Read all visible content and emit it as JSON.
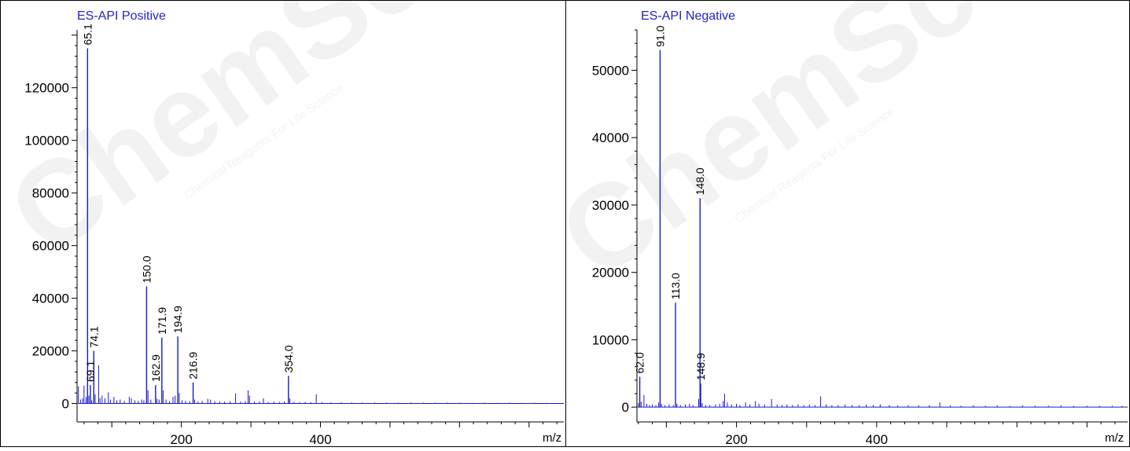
{
  "watermark": {
    "brand": "ChemScene",
    "tagline": "Chemical Reagents For Life Science"
  },
  "chart_data": [
    {
      "type": "bar",
      "title": "ES-API Positive",
      "xlabel": "m/z",
      "ylabel": "",
      "xlim": [
        50,
        750
      ],
      "ylim": [
        -7000,
        142000
      ],
      "xticks": [
        200,
        400
      ],
      "yticks": [
        0,
        20000,
        40000,
        60000,
        80000,
        100000,
        120000
      ],
      "color": "#1a1acc",
      "title_color": "#2222cc",
      "peaks": [
        {
          "x": 65.1,
          "y": 135000,
          "label": "65.1"
        },
        {
          "x": 69.1,
          "y": 7000,
          "label": "69.1"
        },
        {
          "x": 74.1,
          "y": 20000,
          "label": "74.1"
        },
        {
          "x": 150.0,
          "y": 44500,
          "label": "150.0"
        },
        {
          "x": 162.9,
          "y": 7000,
          "label": "162.9"
        },
        {
          "x": 171.9,
          "y": 25000,
          "label": "171.9"
        },
        {
          "x": 194.9,
          "y": 25500,
          "label": "194.9"
        },
        {
          "x": 216.9,
          "y": 8000,
          "label": "216.9"
        },
        {
          "x": 354.0,
          "y": 10500,
          "label": "354.0"
        }
      ],
      "minor_peaks": [
        {
          "x": 52,
          "y": 6500
        },
        {
          "x": 55,
          "y": 1500
        },
        {
          "x": 58,
          "y": 2000
        },
        {
          "x": 60,
          "y": 6800
        },
        {
          "x": 63,
          "y": 2500
        },
        {
          "x": 67,
          "y": 3000
        },
        {
          "x": 71,
          "y": 1200
        },
        {
          "x": 76,
          "y": 3500
        },
        {
          "x": 81,
          "y": 14500
        },
        {
          "x": 83,
          "y": 2000
        },
        {
          "x": 86,
          "y": 3000
        },
        {
          "x": 90,
          "y": 2000
        },
        {
          "x": 95,
          "y": 4200
        },
        {
          "x": 98,
          "y": 1500
        },
        {
          "x": 103,
          "y": 2500
        },
        {
          "x": 107,
          "y": 1200
        },
        {
          "x": 112,
          "y": 1500
        },
        {
          "x": 118,
          "y": 1000
        },
        {
          "x": 125,
          "y": 2500
        },
        {
          "x": 128,
          "y": 2000
        },
        {
          "x": 133,
          "y": 1200
        },
        {
          "x": 138,
          "y": 1000
        },
        {
          "x": 143,
          "y": 1500
        },
        {
          "x": 146,
          "y": 1200
        },
        {
          "x": 152,
          "y": 5000
        },
        {
          "x": 156,
          "y": 1500
        },
        {
          "x": 165,
          "y": 1800
        },
        {
          "x": 168,
          "y": 1500
        },
        {
          "x": 174,
          "y": 5000
        },
        {
          "x": 178,
          "y": 1500
        },
        {
          "x": 183,
          "y": 1000
        },
        {
          "x": 188,
          "y": 2500
        },
        {
          "x": 191,
          "y": 3000
        },
        {
          "x": 197,
          "y": 4000
        },
        {
          "x": 201,
          "y": 1200
        },
        {
          "x": 206,
          "y": 1000
        },
        {
          "x": 212,
          "y": 900
        },
        {
          "x": 219,
          "y": 1500
        },
        {
          "x": 224,
          "y": 800
        },
        {
          "x": 230,
          "y": 1000
        },
        {
          "x": 238,
          "y": 1800
        },
        {
          "x": 242,
          "y": 1500
        },
        {
          "x": 248,
          "y": 900
        },
        {
          "x": 255,
          "y": 800
        },
        {
          "x": 262,
          "y": 700
        },
        {
          "x": 270,
          "y": 900
        },
        {
          "x": 278,
          "y": 3800
        },
        {
          "x": 285,
          "y": 700
        },
        {
          "x": 292,
          "y": 900
        },
        {
          "x": 296,
          "y": 5000
        },
        {
          "x": 298,
          "y": 3000
        },
        {
          "x": 305,
          "y": 700
        },
        {
          "x": 312,
          "y": 800
        },
        {
          "x": 318,
          "y": 2000
        },
        {
          "x": 325,
          "y": 600
        },
        {
          "x": 333,
          "y": 700
        },
        {
          "x": 341,
          "y": 600
        },
        {
          "x": 348,
          "y": 800
        },
        {
          "x": 356,
          "y": 2000
        },
        {
          "x": 362,
          "y": 600
        },
        {
          "x": 370,
          "y": 500
        },
        {
          "x": 378,
          "y": 600
        },
        {
          "x": 386,
          "y": 500
        },
        {
          "x": 394,
          "y": 3500
        },
        {
          "x": 402,
          "y": 500
        },
        {
          "x": 415,
          "y": 400
        },
        {
          "x": 430,
          "y": 500
        },
        {
          "x": 445,
          "y": 400
        },
        {
          "x": 460,
          "y": 350
        },
        {
          "x": 478,
          "y": 400
        },
        {
          "x": 495,
          "y": 350
        },
        {
          "x": 512,
          "y": 300
        },
        {
          "x": 530,
          "y": 350
        },
        {
          "x": 548,
          "y": 300
        },
        {
          "x": 565,
          "y": 300
        },
        {
          "x": 582,
          "y": 350
        },
        {
          "x": 600,
          "y": 300
        },
        {
          "x": 618,
          "y": 250
        },
        {
          "x": 636,
          "y": 300
        },
        {
          "x": 655,
          "y": 250
        },
        {
          "x": 672,
          "y": 300
        },
        {
          "x": 690,
          "y": 250
        },
        {
          "x": 708,
          "y": 300
        },
        {
          "x": 725,
          "y": 250
        }
      ]
    },
    {
      "type": "bar",
      "title": "ES-API Negative",
      "xlabel": "m/z",
      "ylabel": "",
      "xlim": [
        58,
        758
      ],
      "ylim": [
        -2200,
        56000
      ],
      "xticks": [
        200,
        400
      ],
      "yticks": [
        0,
        10000,
        20000,
        30000,
        40000,
        50000
      ],
      "color": "#1a1acc",
      "title_color": "#2222cc",
      "peaks": [
        {
          "x": 62.0,
          "y": 4500,
          "label": "62.0"
        },
        {
          "x": 91.0,
          "y": 53000,
          "label": "91.0"
        },
        {
          "x": 113.0,
          "y": 15500,
          "label": "113.0"
        },
        {
          "x": 148.0,
          "y": 31000,
          "label": "148.0"
        },
        {
          "x": 148.9,
          "y": 3500,
          "label": "148.9"
        }
      ],
      "minor_peaks": [
        {
          "x": 60,
          "y": 600
        },
        {
          "x": 64,
          "y": 800
        },
        {
          "x": 68,
          "y": 1800
        },
        {
          "x": 72,
          "y": 500
        },
        {
          "x": 76,
          "y": 300
        },
        {
          "x": 80,
          "y": 400
        },
        {
          "x": 85,
          "y": 300
        },
        {
          "x": 89,
          "y": 700
        },
        {
          "x": 93,
          "y": 500
        },
        {
          "x": 98,
          "y": 300
        },
        {
          "x": 104,
          "y": 400
        },
        {
          "x": 110,
          "y": 300
        },
        {
          "x": 115,
          "y": 500
        },
        {
          "x": 120,
          "y": 300
        },
        {
          "x": 127,
          "y": 400
        },
        {
          "x": 133,
          "y": 500
        },
        {
          "x": 138,
          "y": 300
        },
        {
          "x": 146,
          "y": 1200
        },
        {
          "x": 151,
          "y": 600
        },
        {
          "x": 156,
          "y": 300
        },
        {
          "x": 162,
          "y": 300
        },
        {
          "x": 170,
          "y": 400
        },
        {
          "x": 176,
          "y": 500
        },
        {
          "x": 181,
          "y": 900
        },
        {
          "x": 183,
          "y": 2000
        },
        {
          "x": 187,
          "y": 700
        },
        {
          "x": 193,
          "y": 400
        },
        {
          "x": 200,
          "y": 500
        },
        {
          "x": 205,
          "y": 300
        },
        {
          "x": 213,
          "y": 700
        },
        {
          "x": 219,
          "y": 400
        },
        {
          "x": 227,
          "y": 900
        },
        {
          "x": 232,
          "y": 500
        },
        {
          "x": 240,
          "y": 400
        },
        {
          "x": 250,
          "y": 1200
        },
        {
          "x": 258,
          "y": 400
        },
        {
          "x": 265,
          "y": 300
        },
        {
          "x": 272,
          "y": 400
        },
        {
          "x": 280,
          "y": 300
        },
        {
          "x": 288,
          "y": 400
        },
        {
          "x": 296,
          "y": 300
        },
        {
          "x": 304,
          "y": 400
        },
        {
          "x": 312,
          "y": 300
        },
        {
          "x": 320,
          "y": 1600
        },
        {
          "x": 328,
          "y": 400
        },
        {
          "x": 336,
          "y": 300
        },
        {
          "x": 345,
          "y": 300
        },
        {
          "x": 355,
          "y": 400
        },
        {
          "x": 365,
          "y": 300
        },
        {
          "x": 375,
          "y": 300
        },
        {
          "x": 385,
          "y": 400
        },
        {
          "x": 395,
          "y": 300
        },
        {
          "x": 405,
          "y": 400
        },
        {
          "x": 418,
          "y": 300
        },
        {
          "x": 430,
          "y": 250
        },
        {
          "x": 445,
          "y": 300
        },
        {
          "x": 460,
          "y": 250
        },
        {
          "x": 475,
          "y": 300
        },
        {
          "x": 490,
          "y": 700
        },
        {
          "x": 505,
          "y": 250
        },
        {
          "x": 520,
          "y": 200
        },
        {
          "x": 538,
          "y": 250
        },
        {
          "x": 555,
          "y": 200
        },
        {
          "x": 572,
          "y": 250
        },
        {
          "x": 590,
          "y": 200
        },
        {
          "x": 608,
          "y": 250
        },
        {
          "x": 626,
          "y": 200
        },
        {
          "x": 645,
          "y": 200
        },
        {
          "x": 663,
          "y": 250
        },
        {
          "x": 681,
          "y": 200
        },
        {
          "x": 700,
          "y": 200
        },
        {
          "x": 718,
          "y": 200
        },
        {
          "x": 736,
          "y": 200
        },
        {
          "x": 750,
          "y": 200
        }
      ]
    }
  ]
}
